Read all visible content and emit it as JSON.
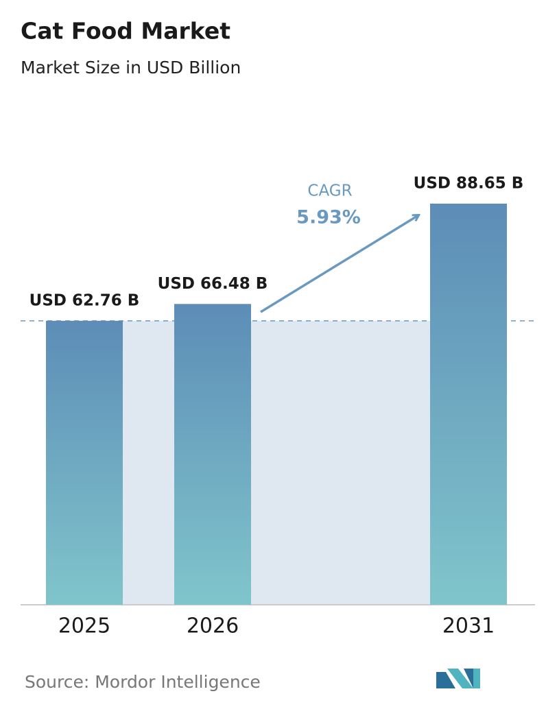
{
  "chart_data": {
    "type": "bar",
    "title": "Cat Food Market",
    "subtitle": "Market Size in USD Billion",
    "categories": [
      "2025",
      "2026",
      "2031"
    ],
    "values": [
      62.76,
      66.48,
      88.65
    ],
    "value_labels": [
      "USD 62.76 B",
      "USD 66.48 B",
      "USD 88.65 B"
    ],
    "annotations": {
      "cagr_label": "CAGR",
      "cagr_value": "5.93%"
    },
    "source": "Source:  Mordor Intelligence"
  }
}
